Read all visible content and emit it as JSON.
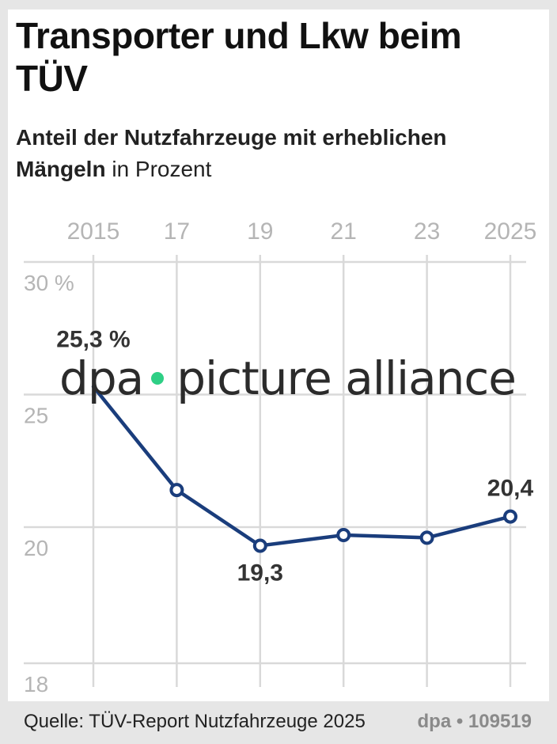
{
  "title": "Transporter und Lkw beim TÜV",
  "subtitle_bold": "Anteil der Nutzfahrzeuge mit erheblichen Mängeln",
  "subtitle_unit": " in Prozent",
  "watermark": {
    "left": "dpa",
    "right": "picture alliance"
  },
  "footer": {
    "source": "Quelle: TÜV-Report Nutzfahrzeuge 2025",
    "credit": "dpa • 109519"
  },
  "colors": {
    "line": "#1a3d7c",
    "grid": "#d9d9d9",
    "ticks": "#b5b5b5",
    "watermark_dot": "#2ecf85"
  },
  "chart_data": {
    "type": "line",
    "x": [
      2015,
      2017,
      2019,
      2021,
      2023,
      2025
    ],
    "x_tick_labels": [
      "2015",
      "17",
      "19",
      "21",
      "23",
      "2025"
    ],
    "series": [
      {
        "values": [
          25.3,
          21.4,
          19.3,
          19.7,
          19.6,
          20.4
        ]
      }
    ],
    "y_ticks": [
      30,
      25,
      20,
      18
    ],
    "y_tick_labels": [
      "30 %",
      "25",
      "20",
      "18"
    ],
    "ylim": [
      18,
      30
    ],
    "data_labels": [
      {
        "index": 0,
        "text": "25,3 %"
      },
      {
        "index": 2,
        "text": "19,3"
      },
      {
        "index": 5,
        "text": "20,4"
      }
    ],
    "grid": true,
    "x_axis_position": "top"
  }
}
